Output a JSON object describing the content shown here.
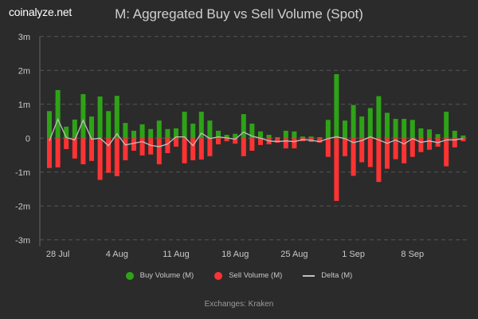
{
  "logo": "coinalyze.net",
  "chart_data": {
    "type": "bar",
    "title": "M: Aggregated Buy vs Sell Volume (Spot)",
    "subtitle": "Exchanges: Kraken",
    "ylim": [
      -3,
      3
    ],
    "yticks": [
      "3m",
      "2m",
      "1m",
      "0",
      "-1m",
      "-2m",
      "-3m"
    ],
    "ytick_values": [
      3,
      2,
      1,
      0,
      -1,
      -2,
      -3
    ],
    "grid": true,
    "legend_position": "bottom",
    "xticks": [
      {
        "label": "28 Jul",
        "index": 1
      },
      {
        "label": "4 Aug",
        "index": 8
      },
      {
        "label": "11 Aug",
        "index": 15
      },
      {
        "label": "18 Aug",
        "index": 22
      },
      {
        "label": "25 Aug",
        "index": 29
      },
      {
        "label": "1 Sep",
        "index": 36
      },
      {
        "label": "8 Sep",
        "index": 43
      }
    ],
    "x_start": "27 Jul",
    "x_end": "14 Sep",
    "series": [
      {
        "name": "Buy Volume (M)",
        "color": "#2ea317",
        "type": "bar",
        "values": [
          0.8,
          1.42,
          0.34,
          0.55,
          1.3,
          0.64,
          1.23,
          0.8,
          1.25,
          0.45,
          0.22,
          0.41,
          0.27,
          0.52,
          0.27,
          0.29,
          0.78,
          0.43,
          0.78,
          0.52,
          0.22,
          0.1,
          0.13,
          0.71,
          0.43,
          0.2,
          0.1,
          0.03,
          0.22,
          0.2,
          0.05,
          0.05,
          0.03,
          0.54,
          1.89,
          0.52,
          0.98,
          0.64,
          0.89,
          1.24,
          0.75,
          0.57,
          0.57,
          0.54,
          0.29,
          0.26,
          0.12,
          0.78,
          0.22,
          0.08
        ]
      },
      {
        "name": "Sell Volume (M)",
        "color": "#ff3333",
        "type": "bar",
        "values": [
          -0.88,
          -0.86,
          -0.32,
          -0.6,
          -0.77,
          -0.67,
          -1.23,
          -1.02,
          -1.12,
          -0.65,
          -0.37,
          -0.51,
          -0.48,
          -0.77,
          -0.44,
          -0.25,
          -0.74,
          -0.65,
          -0.63,
          -0.53,
          -0.18,
          -0.09,
          -0.16,
          -0.53,
          -0.37,
          -0.2,
          -0.18,
          -0.13,
          -0.3,
          -0.3,
          -0.09,
          -0.11,
          -0.13,
          -0.55,
          -1.85,
          -0.53,
          -1.11,
          -0.71,
          -0.85,
          -1.29,
          -0.9,
          -0.62,
          -0.74,
          -0.55,
          -0.41,
          -0.34,
          -0.25,
          -0.83,
          -0.27,
          -0.09
        ]
      },
      {
        "name": "Delta (M)",
        "color": "#c0c0c0",
        "type": "line",
        "values": [
          -0.08,
          0.56,
          0.02,
          -0.05,
          0.53,
          -0.03,
          0.0,
          -0.22,
          0.13,
          -0.2,
          -0.15,
          -0.1,
          -0.21,
          -0.25,
          -0.17,
          0.04,
          0.04,
          -0.22,
          0.15,
          -0.01,
          0.04,
          0.01,
          -0.03,
          0.18,
          0.06,
          0.0,
          -0.08,
          -0.1,
          -0.08,
          -0.1,
          -0.04,
          -0.06,
          -0.1,
          -0.01,
          0.04,
          -0.01,
          -0.13,
          -0.07,
          0.04,
          -0.05,
          -0.15,
          -0.05,
          -0.17,
          -0.01,
          -0.12,
          -0.08,
          -0.13,
          -0.05,
          -0.05,
          -0.01
        ]
      }
    ]
  }
}
